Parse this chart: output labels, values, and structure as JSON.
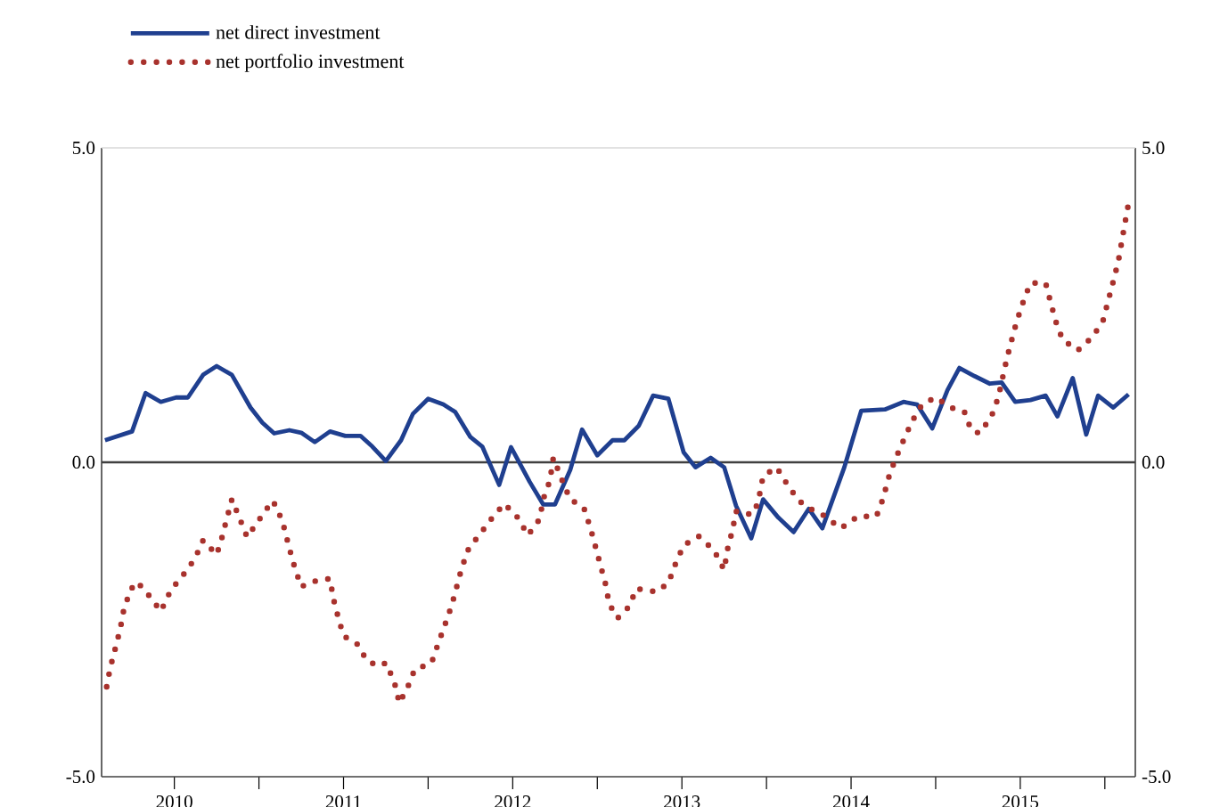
{
  "chart_data": {
    "type": "line",
    "xlim": [
      2010.07,
      2016.18
    ],
    "xticks": [
      {
        "value": 2010.5,
        "label": "2010"
      },
      {
        "value": 2011.0,
        "label": null
      },
      {
        "value": 2011.5,
        "label": "2011"
      },
      {
        "value": 2012.0,
        "label": null
      },
      {
        "value": 2012.5,
        "label": "2012"
      },
      {
        "value": 2013.0,
        "label": null
      },
      {
        "value": 2013.5,
        "label": "2013"
      },
      {
        "value": 2014.0,
        "label": null
      },
      {
        "value": 2014.5,
        "label": "2014"
      },
      {
        "value": 2015.0,
        "label": null
      },
      {
        "value": 2015.5,
        "label": "2015"
      },
      {
        "value": 2016.0,
        "label": null
      }
    ],
    "ylim": [
      -5,
      5
    ],
    "yticks": [
      {
        "value": -5,
        "label": "-5.0"
      },
      {
        "value": 0,
        "label": "0.0"
      },
      {
        "value": 5,
        "label": "5.0"
      }
    ],
    "y2lim": [
      -5,
      5
    ],
    "y2ticks": [
      {
        "value": -5,
        "label": "-5.0"
      },
      {
        "value": 0,
        "label": "0.0"
      },
      {
        "value": 5,
        "label": "5.0"
      }
    ],
    "ref_lines": [
      {
        "axis": "y",
        "value": 0,
        "color": "#404040"
      }
    ],
    "legend": "top left",
    "marker": "none",
    "series": [
      {
        "name": "net direct investment",
        "color": "#1f3f8f",
        "line_style": "solid",
        "x": [
          2010.09,
          2010.25,
          2010.33,
          2010.42,
          2010.51,
          2010.58,
          2010.67,
          2010.75,
          2010.84,
          2010.95,
          2011.02,
          2011.09,
          2011.18,
          2011.25,
          2011.33,
          2011.42,
          2011.51,
          2011.6,
          2011.67,
          2011.75,
          2011.84,
          2011.91,
          2012.0,
          2012.09,
          2012.16,
          2012.25,
          2012.32,
          2012.42,
          2012.49,
          2012.6,
          2012.68,
          2012.75,
          2012.84,
          2012.91,
          2013.0,
          2013.09,
          2013.16,
          2013.245,
          2013.33,
          2013.42,
          2013.51,
          2013.58,
          2013.67,
          2013.75,
          2013.82,
          2013.91,
          2013.98,
          2014.07,
          2014.16,
          2014.25,
          2014.33,
          2014.46,
          2014.56,
          2014.7,
          2014.81,
          2014.89,
          2014.98,
          2015.07,
          2015.14,
          2015.23,
          2015.32,
          2015.39,
          2015.47,
          2015.56,
          2015.65,
          2015.72,
          2015.81,
          2015.89,
          2015.96,
          2016.05,
          2016.14
        ],
        "values": [
          0.35,
          0.49,
          1.1,
          0.96,
          1.03,
          1.03,
          1.39,
          1.53,
          1.39,
          0.87,
          0.63,
          0.46,
          0.51,
          0.47,
          0.32,
          0.49,
          0.42,
          0.42,
          0.25,
          0.02,
          0.35,
          0.77,
          1.01,
          0.92,
          0.8,
          0.4,
          0.25,
          -0.36,
          0.24,
          -0.31,
          -0.67,
          -0.67,
          -0.12,
          0.52,
          0.11,
          0.35,
          0.35,
          0.58,
          1.06,
          1.01,
          0.16,
          -0.08,
          0.07,
          -0.08,
          -0.69,
          -1.21,
          -0.59,
          -0.88,
          -1.11,
          -0.74,
          -1.05,
          -0.08,
          0.82,
          0.84,
          0.96,
          0.92,
          0.54,
          1.15,
          1.5,
          1.37,
          1.25,
          1.27,
          0.96,
          0.99,
          1.06,
          0.73,
          1.34,
          0.44,
          1.06,
          0.87,
          1.08
        ]
      },
      {
        "name": "net portfolio investment",
        "color": "#a8322d",
        "line_style": "dotted",
        "x": [
          2010.1,
          2010.12,
          2010.15,
          2010.18,
          2010.2,
          2010.24,
          2010.28,
          2010.36,
          2010.42,
          2010.48,
          2010.55,
          2010.62,
          2010.67,
          2010.75,
          2010.78,
          2010.81,
          2010.84,
          2010.89,
          2010.93,
          2011.01,
          2011.08,
          2011.11,
          2011.15,
          2011.18,
          2011.21,
          2011.25,
          2011.31,
          2011.42,
          2011.44,
          2011.47,
          2011.5,
          2011.58,
          2011.64,
          2011.71,
          2011.75,
          2011.8,
          2011.83,
          2011.88,
          2011.92,
          2012.02,
          2012.06,
          2012.1,
          2012.14,
          2012.17,
          2012.2,
          2012.24,
          2012.31,
          2012.38,
          2012.45,
          2012.53,
          2012.59,
          2012.66,
          2012.68,
          2012.72,
          2012.74,
          2012.8,
          2012.84,
          2012.92,
          2012.96,
          2012.99,
          2013.02,
          2013.05,
          2013.07,
          2013.12,
          2013.19,
          2013.23,
          2013.35,
          2013.42,
          2013.46,
          2013.51,
          2013.6,
          2013.69,
          2013.75,
          2013.77,
          2013.8,
          2013.82,
          2013.88,
          2013.93,
          2013.96,
          2013.98,
          2014.06,
          2014.12,
          2014.19,
          2014.26,
          2014.33,
          2014.44,
          2014.54,
          2014.65,
          2014.69,
          2014.72,
          2014.76,
          2014.81,
          2014.86,
          2014.92,
          2015.0,
          2015.09,
          2015.17,
          2015.21,
          2015.26,
          2015.33,
          2015.37,
          2015.42,
          2015.45,
          2015.48,
          2015.52,
          2015.56,
          2015.65,
          2015.68,
          2015.71,
          2015.75,
          2015.84,
          2015.93,
          2015.99,
          2016.02,
          2016.05,
          2016.08,
          2016.1,
          2016.12,
          2016.14
        ],
        "values": [
          -3.57,
          -3.28,
          -2.97,
          -2.65,
          -2.36,
          -2.03,
          -1.9,
          -2.15,
          -2.37,
          -2.03,
          -1.8,
          -1.54,
          -1.24,
          -1.47,
          -1.21,
          -0.9,
          -0.59,
          -0.92,
          -1.19,
          -0.88,
          -0.61,
          -0.74,
          -1.05,
          -1.37,
          -1.66,
          -1.98,
          -1.9,
          -1.85,
          -2.17,
          -2.48,
          -2.76,
          -2.89,
          -3.16,
          -3.24,
          -3.19,
          -3.49,
          -3.83,
          -3.57,
          -3.3,
          -3.19,
          -2.88,
          -2.58,
          -2.27,
          -1.97,
          -1.67,
          -1.37,
          -1.13,
          -0.88,
          -0.66,
          -0.88,
          -1.16,
          -0.9,
          -0.59,
          -0.29,
          0.07,
          -0.34,
          -0.59,
          -0.72,
          -1.05,
          -1.35,
          -1.65,
          -1.95,
          -2.25,
          -2.48,
          -2.29,
          -2.01,
          -2.06,
          -1.92,
          -1.63,
          -1.32,
          -1.18,
          -1.4,
          -1.71,
          -1.38,
          -1.07,
          -0.78,
          -0.83,
          -0.8,
          -0.5,
          -0.22,
          -0.08,
          -0.34,
          -0.61,
          -0.74,
          -0.83,
          -1.05,
          -0.86,
          -0.86,
          -0.57,
          -0.26,
          0.04,
          0.35,
          0.65,
          0.92,
          1.03,
          0.87,
          0.8,
          0.51,
          0.46,
          0.73,
          1.03,
          1.64,
          1.95,
          2.25,
          2.57,
          2.85,
          2.85,
          2.54,
          2.24,
          1.95,
          1.78,
          2.0,
          2.26,
          2.57,
          2.88,
          3.2,
          3.51,
          3.82,
          4.12
        ]
      }
    ]
  }
}
